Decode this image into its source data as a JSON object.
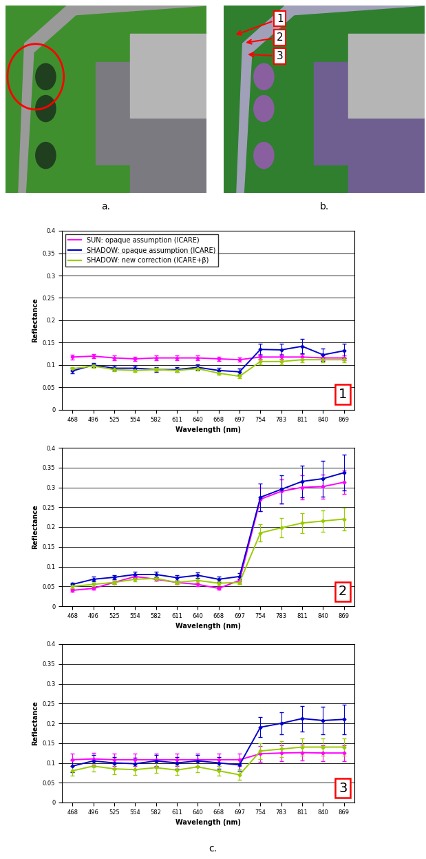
{
  "figure": {
    "image_labels": [
      "a.",
      "b."
    ],
    "point_labels": [
      "1",
      "2",
      "3"
    ],
    "caption": "c."
  },
  "chart_data": [
    {
      "type": "line",
      "x_label": "Wavelength (nm)",
      "y_label": "Reflectance",
      "categories": [
        "468",
        "496",
        "525",
        "554",
        "582",
        "611",
        "640",
        "668",
        "697",
        "754",
        "783",
        "811",
        "840",
        "869"
      ],
      "ylim": [
        0,
        0.4
      ],
      "yticks": [
        0,
        0.05,
        0.1,
        0.15,
        0.2,
        0.25,
        0.3,
        0.35,
        0.4
      ],
      "grid": true,
      "legend": "upper left",
      "annotation": "1",
      "marker": "diamond",
      "series": [
        {
          "name": "SUN: opaque assumption (ICARE)",
          "color": "#ff00ff",
          "values": [
            0.118,
            0.12,
            0.116,
            0.114,
            0.116,
            0.116,
            0.116,
            0.114,
            0.112,
            0.118,
            0.118,
            0.118,
            0.116,
            0.116
          ],
          "errors": [
            0.005,
            0.005,
            0.005,
            0.005,
            0.005,
            0.005,
            0.005,
            0.005,
            0.005,
            0.006,
            0.006,
            0.006,
            0.006,
            0.006
          ]
        },
        {
          "name": "SHADOW: opaque assumption (ICARE)",
          "color": "#0000cc",
          "values": [
            0.087,
            0.1,
            0.093,
            0.093,
            0.09,
            0.09,
            0.095,
            0.088,
            0.085,
            0.135,
            0.134,
            0.142,
            0.123,
            0.132
          ],
          "errors": [
            0.005,
            0.005,
            0.006,
            0.006,
            0.006,
            0.006,
            0.006,
            0.006,
            0.007,
            0.013,
            0.013,
            0.016,
            0.014,
            0.016
          ]
        },
        {
          "name": "SHADOW: new correction (ICARE+β)",
          "color": "#99cc00",
          "values": [
            0.092,
            0.098,
            0.09,
            0.088,
            0.09,
            0.088,
            0.092,
            0.082,
            0.075,
            0.108,
            0.108,
            0.112,
            0.112,
            0.112
          ],
          "errors": [
            0.004,
            0.004,
            0.004,
            0.004,
            0.004,
            0.004,
            0.004,
            0.004,
            0.005,
            0.006,
            0.006,
            0.006,
            0.006,
            0.006
          ]
        }
      ]
    },
    {
      "type": "line",
      "x_label": "Wavelength (nm)",
      "y_label": "Reflectance",
      "categories": [
        "468",
        "496",
        "525",
        "554",
        "582",
        "611",
        "640",
        "668",
        "697",
        "754",
        "783",
        "811",
        "840",
        "869"
      ],
      "ylim": [
        0,
        0.4
      ],
      "yticks": [
        0,
        0.05,
        0.1,
        0.15,
        0.2,
        0.25,
        0.3,
        0.35,
        0.4
      ],
      "grid": true,
      "annotation": "2",
      "marker": "diamond",
      "series": [
        {
          "color": "#ff00ff",
          "values": [
            0.04,
            0.045,
            0.06,
            0.075,
            0.068,
            0.06,
            0.055,
            0.045,
            0.065,
            0.27,
            0.29,
            0.3,
            0.302,
            0.313
          ],
          "errors": [
            0.003,
            0.003,
            0.004,
            0.004,
            0.004,
            0.004,
            0.004,
            0.004,
            0.005,
            0.03,
            0.03,
            0.03,
            0.03,
            0.03
          ]
        },
        {
          "color": "#0000cc",
          "values": [
            0.055,
            0.068,
            0.073,
            0.08,
            0.08,
            0.072,
            0.078,
            0.068,
            0.075,
            0.275,
            0.295,
            0.315,
            0.322,
            0.337
          ],
          "errors": [
            0.005,
            0.006,
            0.006,
            0.007,
            0.007,
            0.007,
            0.007,
            0.007,
            0.008,
            0.035,
            0.035,
            0.04,
            0.045,
            0.045
          ]
        },
        {
          "color": "#99cc00",
          "values": [
            0.05,
            0.055,
            0.06,
            0.068,
            0.07,
            0.06,
            0.065,
            0.058,
            0.06,
            0.185,
            0.198,
            0.21,
            0.215,
            0.22
          ],
          "errors": [
            0.004,
            0.004,
            0.005,
            0.005,
            0.005,
            0.005,
            0.005,
            0.005,
            0.005,
            0.022,
            0.024,
            0.025,
            0.027,
            0.028
          ]
        }
      ]
    },
    {
      "type": "line",
      "x_label": "Wavelength (nm)",
      "y_label": "Reflectance",
      "categories": [
        "468",
        "496",
        "525",
        "554",
        "582",
        "611",
        "640",
        "668",
        "697",
        "754",
        "783",
        "811",
        "840",
        "869"
      ],
      "ylim": [
        0,
        0.4
      ],
      "yticks": [
        0,
        0.05,
        0.1,
        0.15,
        0.2,
        0.25,
        0.3,
        0.35,
        0.4
      ],
      "grid": true,
      "annotation": "3",
      "marker": "diamond",
      "series": [
        {
          "color": "#ff00ff",
          "values": [
            0.108,
            0.11,
            0.108,
            0.108,
            0.108,
            0.108,
            0.108,
            0.108,
            0.108,
            0.123,
            0.125,
            0.126,
            0.125,
            0.125
          ],
          "errors": [
            0.015,
            0.015,
            0.015,
            0.015,
            0.015,
            0.015,
            0.015,
            0.015,
            0.015,
            0.02,
            0.02,
            0.02,
            0.02,
            0.02
          ]
        },
        {
          "color": "#0000cc",
          "values": [
            0.092,
            0.105,
            0.1,
            0.098,
            0.105,
            0.1,
            0.105,
            0.1,
            0.095,
            0.19,
            0.2,
            0.212,
            0.207,
            0.21
          ],
          "errors": [
            0.015,
            0.015,
            0.015,
            0.015,
            0.015,
            0.015,
            0.015,
            0.015,
            0.015,
            0.025,
            0.028,
            0.032,
            0.035,
            0.037
          ]
        },
        {
          "color": "#99cc00",
          "values": [
            0.08,
            0.092,
            0.085,
            0.083,
            0.088,
            0.082,
            0.09,
            0.08,
            0.07,
            0.13,
            0.135,
            0.14,
            0.14,
            0.14
          ],
          "errors": [
            0.013,
            0.013,
            0.013,
            0.013,
            0.013,
            0.013,
            0.013,
            0.013,
            0.013,
            0.02,
            0.02,
            0.022,
            0.022,
            0.022
          ]
        }
      ]
    }
  ]
}
